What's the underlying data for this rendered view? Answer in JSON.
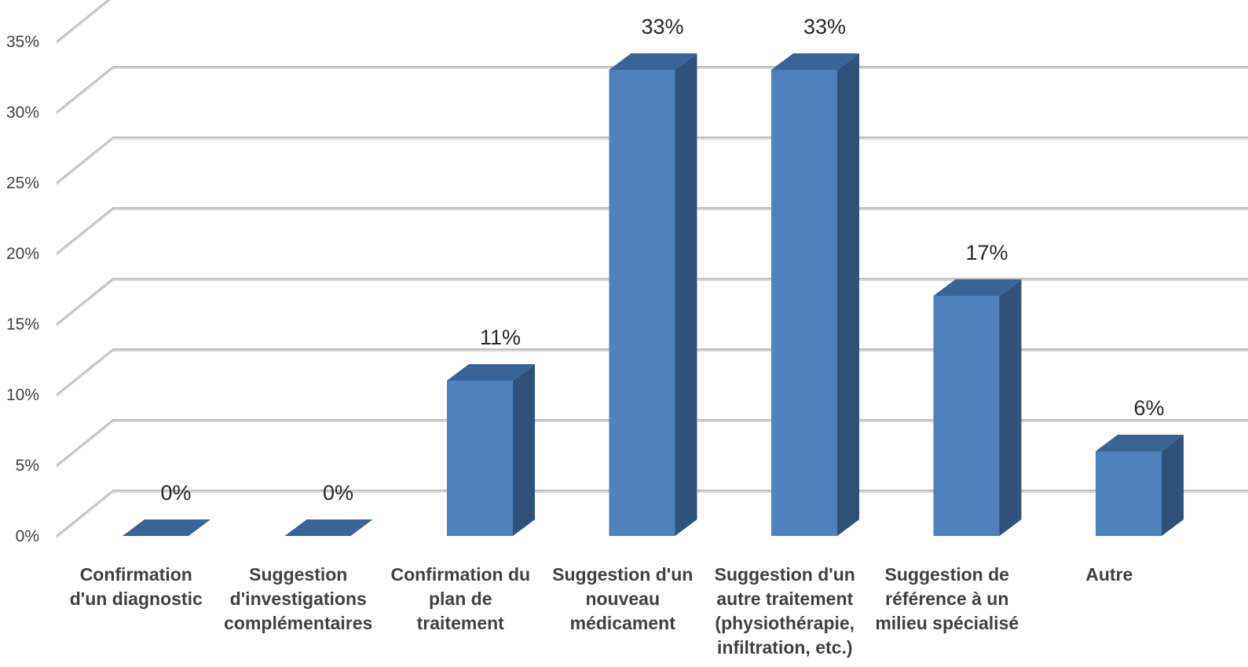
{
  "chart_data": {
    "type": "bar",
    "title": "",
    "xlabel": "",
    "ylabel": "",
    "ylim": [
      0,
      35
    ],
    "ytick_step": 5,
    "ytick_format": "percent",
    "grid": true,
    "three_d": true,
    "colors": {
      "front": "#4F81BD",
      "side": "#30527A",
      "top": "#3A6496",
      "gridline": "#BFBFBF",
      "gridline_shadow": "#D9D9D9"
    },
    "categories": [
      [
        "Confirmation",
        "d'un diagnostic"
      ],
      [
        "Suggestion",
        "d'investigations",
        "complémentaires"
      ],
      [
        "Confirmation du",
        "plan de",
        "traitement"
      ],
      [
        "Suggestion d'un",
        "nouveau",
        "médicament"
      ],
      [
        "Suggestion d'un",
        "autre traitement",
        "(physiothérapie,",
        "infiltration, etc.)"
      ],
      [
        "Suggestion de",
        "référence à un",
        "milieu spécialisé"
      ],
      [
        "Autre"
      ]
    ],
    "values": [
      0,
      0,
      11,
      33,
      33,
      17,
      6
    ],
    "data_labels": [
      "0%",
      "0%",
      "11%",
      "33%",
      "33%",
      "17%",
      "6%"
    ]
  }
}
